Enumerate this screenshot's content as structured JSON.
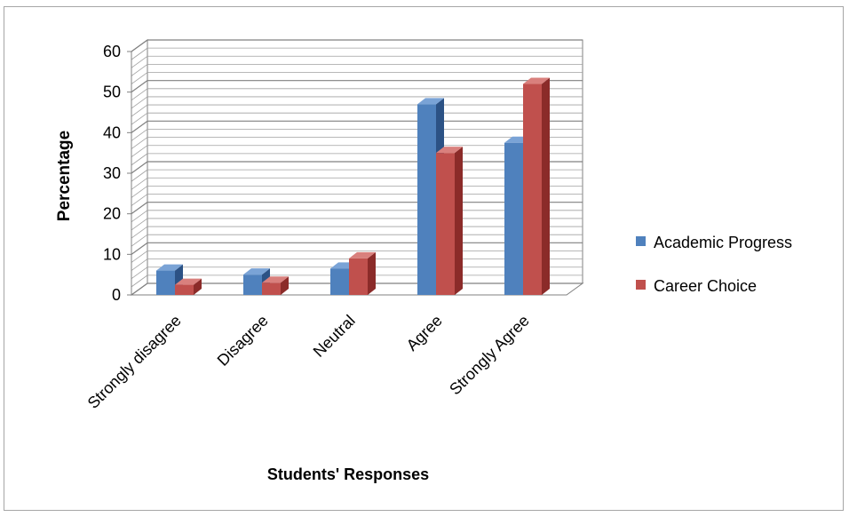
{
  "chart_data": {
    "type": "bar",
    "title": "",
    "xlabel": "Students' Responses",
    "ylabel": "Percentage",
    "categories": [
      "Strongly disagree",
      "Disagree",
      "Neutral",
      "Agree",
      "Strongly Agree"
    ],
    "series": [
      {
        "name": "Academic Progress",
        "values": [
          6,
          5,
          6.5,
          47,
          37.5
        ]
      },
      {
        "name": "Career Choice",
        "values": [
          2.5,
          3,
          9,
          35,
          52
        ]
      }
    ],
    "ylim": [
      0,
      60
    ],
    "yticks": [
      "0",
      "10",
      "20",
      "30",
      "40",
      "50",
      "60"
    ],
    "grid": true,
    "legend_position": "right",
    "colors": {
      "academic_front": "#4f81bd",
      "academic_side": "#2c5285",
      "academic_top": "#7aa3d6",
      "career_front": "#c0504d",
      "career_side": "#8b2b29",
      "career_top": "#d9807d"
    }
  }
}
